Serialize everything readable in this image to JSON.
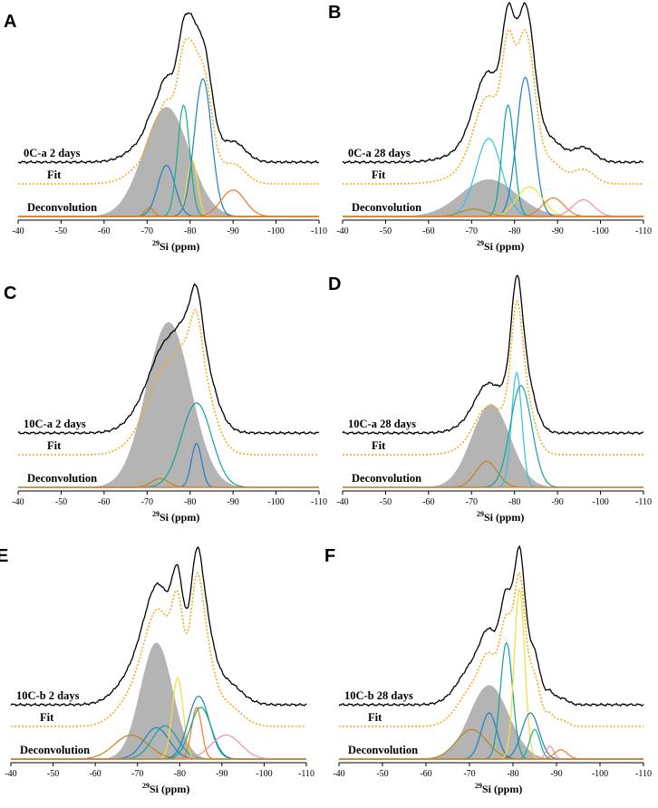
{
  "figure": {
    "xlabel_sup": "29",
    "xlabel_main": "Si (ppm)",
    "xticks": [
      -40,
      -50,
      -60,
      -70,
      -80,
      -90,
      -100,
      -110
    ],
    "xlim": [
      -40,
      -110
    ],
    "row_labels": [
      "Fit",
      "Deconvolution"
    ]
  },
  "colors": {
    "spectrum": "#000000",
    "fit": "#f2ac1c",
    "gray": "#b4b4b4",
    "blue": "#1f7fc4",
    "cyan": "#2bc5e6",
    "teal": "#0fa59a",
    "green": "#16b088",
    "yellow": "#f0e134",
    "orange": "#f07a1c",
    "brown": "#b9861a",
    "pink": "#f28cb4"
  },
  "chart_data": [
    {
      "label": "A",
      "type": "line",
      "title": "0C-a 2 days",
      "xlabel": "29Si (ppm)",
      "xlim": [
        -40,
        -110
      ],
      "peak_height": 1.0,
      "peaks": [
        {
          "center": -74.5,
          "width": 5.3,
          "amp": 0.62,
          "color": "gray",
          "fill": true
        },
        {
          "center": -74.5,
          "width": 2.0,
          "amp": 0.29,
          "color": "blue"
        },
        {
          "center": -78.5,
          "width": 1.4,
          "amp": 0.63,
          "color": "green"
        },
        {
          "center": -80.5,
          "width": 1.2,
          "amp": 0.32,
          "color": "yellow"
        },
        {
          "center": -83.0,
          "width": 2.0,
          "amp": 0.78,
          "color": "blue"
        },
        {
          "center": -90.0,
          "width": 2.8,
          "amp": 0.15,
          "color": "orange"
        },
        {
          "center": -70.5,
          "width": 1.0,
          "amp": 0.05,
          "color": "brown"
        }
      ]
    },
    {
      "label": "B",
      "type": "line",
      "title": "0C-a 28 days",
      "xlabel": "29Si (ppm)",
      "xlim": [
        -40,
        -110
      ],
      "peak_height": 1.0,
      "peaks": [
        {
          "center": -74.0,
          "width": 6.5,
          "amp": 0.2,
          "color": "gray",
          "fill": true
        },
        {
          "center": -74.0,
          "width": 3.0,
          "amp": 0.42,
          "color": "cyan"
        },
        {
          "center": -78.5,
          "width": 1.4,
          "amp": 0.6,
          "color": "teal"
        },
        {
          "center": -82.5,
          "width": 2.0,
          "amp": 0.75,
          "color": "blue"
        },
        {
          "center": -83.5,
          "width": 3.0,
          "amp": 0.16,
          "color": "yellow"
        },
        {
          "center": -89.0,
          "width": 2.5,
          "amp": 0.1,
          "color": "orange"
        },
        {
          "center": -96.0,
          "width": 2.5,
          "amp": 0.09,
          "color": "pink"
        },
        {
          "center": -70.5,
          "width": 3.0,
          "amp": 0.04,
          "color": "brown"
        }
      ]
    },
    {
      "label": "C",
      "type": "line",
      "title": "10C-a 2 days",
      "xlabel": "29Si (ppm)",
      "xlim": [
        -40,
        -110
      ],
      "peak_height": 1.0,
      "peaks": [
        {
          "center": -75.0,
          "width": 5.2,
          "amp": 0.94,
          "color": "gray",
          "fill": true
        },
        {
          "center": -81.5,
          "width": 3.5,
          "amp": 0.48,
          "color": "teal"
        },
        {
          "center": -81.5,
          "width": 1.2,
          "amp": 0.25,
          "color": "blue"
        },
        {
          "center": -73.0,
          "width": 2.0,
          "amp": 0.05,
          "color": "brown"
        }
      ]
    },
    {
      "label": "D",
      "type": "line",
      "title": "10C-a 28 days",
      "xlabel": "29Si (ppm)",
      "xlim": [
        -40,
        -110
      ],
      "peak_height": 1.0,
      "peaks": [
        {
          "center": -74.5,
          "width": 4.5,
          "amp": 0.45,
          "color": "gray",
          "fill": true
        },
        {
          "center": -73.5,
          "width": 2.5,
          "amp": 0.14,
          "color": "brown"
        },
        {
          "center": -80.5,
          "width": 1.2,
          "amp": 0.62,
          "color": "cyan"
        },
        {
          "center": -81.5,
          "width": 2.5,
          "amp": 0.55,
          "color": "teal"
        }
      ]
    },
    {
      "label": "E",
      "type": "line",
      "title": "10C-b 2 days",
      "xlabel": "29Si (ppm)",
      "xlim": [
        -40,
        -110
      ],
      "peak_height": 1.0,
      "peaks": [
        {
          "center": -74.5,
          "width": 3.8,
          "amp": 0.63,
          "color": "gray",
          "fill": true
        },
        {
          "center": -68.5,
          "width": 4.0,
          "amp": 0.13,
          "color": "brown"
        },
        {
          "center": -74.5,
          "width": 3.0,
          "amp": 0.17,
          "color": "blue"
        },
        {
          "center": -76.5,
          "width": 3.0,
          "amp": 0.18,
          "color": "teal"
        },
        {
          "center": -79.5,
          "width": 1.3,
          "amp": 0.44,
          "color": "yellow"
        },
        {
          "center": -84.5,
          "width": 2.5,
          "amp": 0.34,
          "color": "blue"
        },
        {
          "center": -84.0,
          "width": 1.2,
          "amp": 0.28,
          "color": "orange"
        },
        {
          "center": -85.0,
          "width": 2.5,
          "amp": 0.28,
          "color": "teal"
        },
        {
          "center": -91.0,
          "width": 3.5,
          "amp": 0.13,
          "color": "pink"
        }
      ]
    },
    {
      "label": "F",
      "type": "line",
      "title": "10C-b 28 days",
      "xlabel": "29Si (ppm)",
      "xlim": [
        -40,
        -110
      ],
      "peak_height": 1.0,
      "peaks": [
        {
          "center": -74.5,
          "width": 4.5,
          "amp": 0.4,
          "color": "gray",
          "fill": true
        },
        {
          "center": -70.5,
          "width": 3.5,
          "amp": 0.16,
          "color": "brown"
        },
        {
          "center": -74.5,
          "width": 1.8,
          "amp": 0.25,
          "color": "blue"
        },
        {
          "center": -78.5,
          "width": 1.4,
          "amp": 0.63,
          "color": "teal"
        },
        {
          "center": -81.5,
          "width": 1.2,
          "amp": 0.92,
          "color": "yellow"
        },
        {
          "center": -84.0,
          "width": 2.0,
          "amp": 0.25,
          "color": "blue"
        },
        {
          "center": -85.0,
          "width": 1.2,
          "amp": 0.16,
          "color": "green"
        },
        {
          "center": -88.5,
          "width": 0.9,
          "amp": 0.07,
          "color": "pink"
        },
        {
          "center": -91.0,
          "width": 1.5,
          "amp": 0.05,
          "color": "orange"
        }
      ]
    }
  ]
}
